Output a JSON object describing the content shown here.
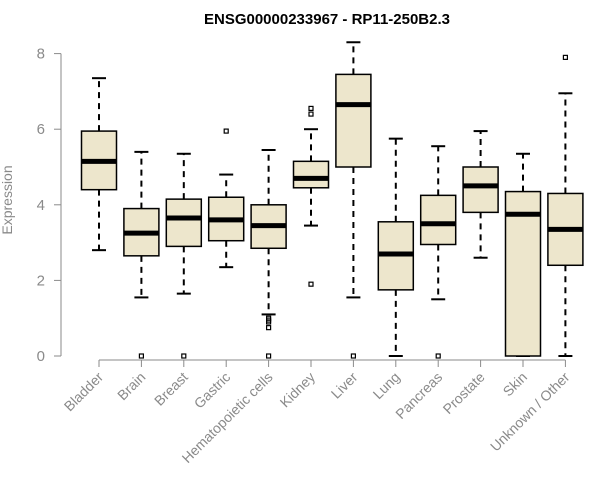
{
  "chart_data": {
    "type": "boxplot",
    "title": "ENSG00000233967 - RP11-250B2.3",
    "xlabel": "",
    "ylabel": "Expression",
    "ylim": [
      0,
      8.3
    ],
    "yticks": [
      0,
      2,
      4,
      6,
      8
    ],
    "colors": {
      "box_fill": "#ede6cc",
      "stroke": "#000000",
      "axis": "#8a8a8a"
    },
    "categories": [
      "Bladder",
      "Brain",
      "Breast",
      "Gastric",
      "Hematopoietic cells",
      "Kidney",
      "Liver",
      "Lung",
      "Pancreas",
      "Prostate",
      "Skin",
      "Unknown / Other"
    ],
    "boxes": [
      {
        "name": "Bladder",
        "whisker_low": 2.8,
        "q1": 4.4,
        "median": 5.15,
        "q3": 5.95,
        "whisker_high": 7.35,
        "outliers": []
      },
      {
        "name": "Brain",
        "whisker_low": 1.55,
        "q1": 2.65,
        "median": 3.25,
        "q3": 3.9,
        "whisker_high": 5.4,
        "outliers": [
          0
        ]
      },
      {
        "name": "Breast",
        "whisker_low": 1.65,
        "q1": 2.9,
        "median": 3.65,
        "q3": 4.15,
        "whisker_high": 5.35,
        "outliers": [
          0
        ]
      },
      {
        "name": "Gastric",
        "whisker_low": 2.35,
        "q1": 3.05,
        "median": 3.6,
        "q3": 4.2,
        "whisker_high": 4.8,
        "outliers": [
          5.95
        ]
      },
      {
        "name": "Hematopoietic cells",
        "whisker_low": 1.1,
        "q1": 2.85,
        "median": 3.45,
        "q3": 4.0,
        "whisker_high": 5.45,
        "outliers": [
          1.0,
          0.95,
          0.9,
          0.75,
          0
        ]
      },
      {
        "name": "Kidney",
        "whisker_low": 3.45,
        "q1": 4.45,
        "median": 4.7,
        "q3": 5.15,
        "whisker_high": 6.0,
        "outliers": [
          6.55,
          6.4,
          1.9
        ]
      },
      {
        "name": "Liver",
        "whisker_low": 1.55,
        "q1": 5.0,
        "median": 6.65,
        "q3": 7.45,
        "whisker_high": 8.3,
        "outliers": [
          0
        ]
      },
      {
        "name": "Lung",
        "whisker_low": 0,
        "q1": 1.75,
        "median": 2.7,
        "q3": 3.55,
        "whisker_high": 5.75,
        "outliers": []
      },
      {
        "name": "Pancreas",
        "whisker_low": 1.5,
        "q1": 2.95,
        "median": 3.5,
        "q3": 4.25,
        "whisker_high": 5.55,
        "outliers": [
          0
        ]
      },
      {
        "name": "Prostate",
        "whisker_low": 2.6,
        "q1": 3.8,
        "median": 4.5,
        "q3": 5.0,
        "whisker_high": 5.95,
        "outliers": []
      },
      {
        "name": "Skin",
        "whisker_low": 0,
        "q1": 0,
        "median": 3.75,
        "q3": 4.35,
        "whisker_high": 5.35,
        "outliers": []
      },
      {
        "name": "Unknown / Other",
        "whisker_low": 0,
        "q1": 2.4,
        "median": 3.35,
        "q3": 4.3,
        "whisker_high": 6.95,
        "outliers": [
          7.9
        ]
      }
    ]
  }
}
